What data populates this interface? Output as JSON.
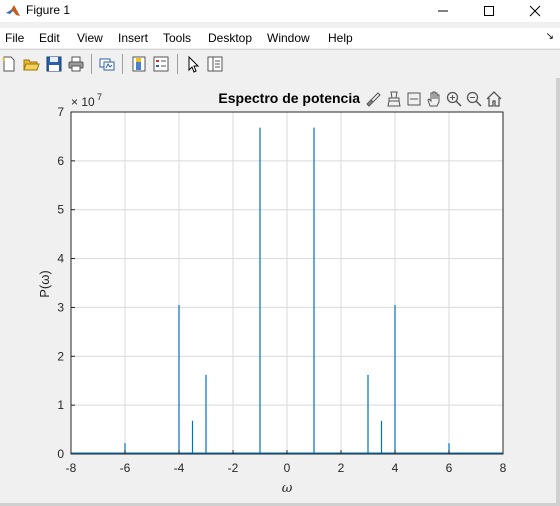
{
  "window": {
    "title": "Figure 1",
    "controls": [
      "minimize-icon",
      "maximize-icon",
      "close-icon"
    ]
  },
  "menu": {
    "file": "File",
    "edit": "Edit",
    "view": "View",
    "insert": "Insert",
    "tools": "Tools",
    "desktop": "Desktop",
    "window": "Window",
    "help": "Help"
  },
  "toolbar": {
    "icons": [
      "new-figure-icon",
      "open-file-icon",
      "save-icon",
      "print-icon",
      "link-plot-icon",
      "colorbar-icon",
      "legend-icon",
      "edit-plot-arrow-icon",
      "property-inspector-icon"
    ]
  },
  "axes_toolbar": {
    "icons": [
      "brush-icon",
      "data-tips-icon",
      "data-cursor-icon",
      "pan-hand-icon",
      "zoom-in-icon",
      "zoom-out-icon",
      "home-icon"
    ]
  },
  "colors": {
    "line": "#0072bd",
    "grid": "#d9d9d9",
    "axis": "#262626"
  },
  "chart_data": {
    "type": "line",
    "title": "Espectro de potencia",
    "xlabel": "ω",
    "ylabel": "P(ω)",
    "y_exponent_label": "× 10",
    "y_exponent_power": "7",
    "xlim": [
      -8,
      8
    ],
    "ylim": [
      0,
      7
    ],
    "grid": true,
    "x_ticks": [
      "-8",
      "-6",
      "-4",
      "-2",
      "0",
      "2",
      "4",
      "6",
      "8"
    ],
    "y_ticks": [
      "0",
      "1",
      "2",
      "3",
      "4",
      "5",
      "6",
      "7"
    ],
    "series": [
      {
        "x": [
          -6,
          -4,
          -3.5,
          -3,
          -1,
          1,
          3,
          3.5,
          4,
          6
        ],
        "values": [
          0.22,
          3.05,
          0.68,
          1.62,
          6.68,
          6.68,
          1.62,
          0.68,
          3.05,
          0.22
        ]
      }
    ]
  }
}
